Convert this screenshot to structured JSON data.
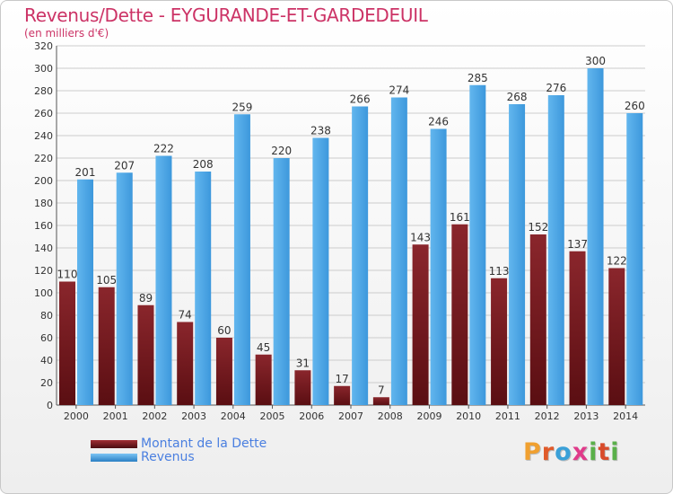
{
  "title": "Revenus/Dette - EYGURANDE-ET-GARDEDEUIL",
  "subtitle": "(en milliers d'€)",
  "logo": {
    "text": "Proxiti"
  },
  "colors": {
    "dette": "#7a1f24",
    "revenus": "#4ea8e8",
    "title": "#cc3366",
    "axis": "#333333",
    "grid": "#cccccc"
  },
  "chart_data": {
    "type": "bar",
    "categories": [
      "2000",
      "2001",
      "2002",
      "2003",
      "2004",
      "2005",
      "2006",
      "2007",
      "2008",
      "2009",
      "2010",
      "2011",
      "2012",
      "2013",
      "2014"
    ],
    "series": [
      {
        "name": "Montant de la Dette",
        "values": [
          110,
          105,
          89,
          74,
          60,
          45,
          31,
          17,
          7,
          143,
          161,
          113,
          152,
          137,
          122
        ]
      },
      {
        "name": "Revenus",
        "values": [
          201,
          207,
          222,
          208,
          259,
          220,
          238,
          266,
          274,
          246,
          285,
          268,
          276,
          300,
          260
        ]
      }
    ],
    "ylim": [
      0,
      320
    ],
    "yticks": [
      0,
      20,
      40,
      60,
      80,
      100,
      120,
      140,
      160,
      180,
      200,
      220,
      240,
      260,
      280,
      300,
      320
    ],
    "grid": true,
    "legend": "bottom-left"
  }
}
